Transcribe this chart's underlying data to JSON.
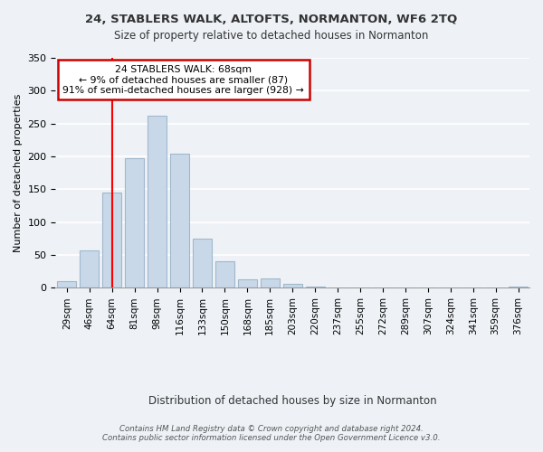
{
  "title": "24, STABLERS WALK, ALTOFTS, NORMANTON, WF6 2TQ",
  "subtitle": "Size of property relative to detached houses in Normanton",
  "bar_labels": [
    "29sqm",
    "46sqm",
    "64sqm",
    "81sqm",
    "98sqm",
    "116sqm",
    "133sqm",
    "150sqm",
    "168sqm",
    "185sqm",
    "203sqm",
    "220sqm",
    "237sqm",
    "255sqm",
    "272sqm",
    "289sqm",
    "307sqm",
    "324sqm",
    "341sqm",
    "359sqm",
    "376sqm"
  ],
  "bar_values": [
    10,
    57,
    145,
    198,
    262,
    204,
    75,
    41,
    13,
    15,
    6,
    2,
    0,
    0,
    0,
    0,
    0,
    0,
    0,
    0,
    2
  ],
  "bar_color": "#c8d8e8",
  "bar_edge_color": "#a0b8cc",
  "ylabel": "Number of detached properties",
  "xlabel": "Distribution of detached houses by size in Normanton",
  "ylim": [
    0,
    350
  ],
  "yticks": [
    0,
    50,
    100,
    150,
    200,
    250,
    300,
    350
  ],
  "redline_x": 2.0,
  "annotation_title": "24 STABLERS WALK: 68sqm",
  "annotation_line1": "← 9% of detached houses are smaller (87)",
  "annotation_line2": "91% of semi-detached houses are larger (928) →",
  "annotation_box_color": "#ffffff",
  "annotation_box_edge": "#cc0000",
  "footer_line1": "Contains HM Land Registry data © Crown copyright and database right 2024.",
  "footer_line2": "Contains public sector information licensed under the Open Government Licence v3.0.",
  "background_color": "#eef2f7",
  "plot_background": "#eef2f7",
  "grid_color": "#ffffff"
}
